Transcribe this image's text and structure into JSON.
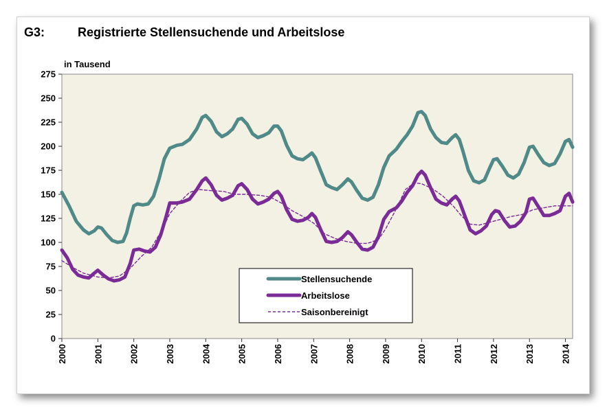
{
  "header": {
    "code": "G3:",
    "title": "Registrierte Stellensuchende und Arbeitslose",
    "unit": "in Tausend"
  },
  "chart_data": {
    "type": "line",
    "title": "Registrierte Stellensuchende und Arbeitslose",
    "ylabel": "in Tausend",
    "ylim": [
      0,
      275
    ],
    "yticks": [
      0,
      25,
      50,
      75,
      100,
      125,
      150,
      175,
      200,
      225,
      250,
      275
    ],
    "xlim": [
      2000,
      2014.2
    ],
    "xticks": [
      "2000",
      "2001",
      "2002",
      "2003",
      "2004",
      "2005",
      "2006",
      "2007",
      "2008",
      "2009",
      "2010",
      "2011",
      "2012",
      "2013",
      "2014"
    ],
    "grid": false,
    "legend_position": "lower-center",
    "background": "#f3f0e4",
    "series": [
      {
        "name": "Stellensuchende",
        "color": "#4f8a88",
        "style": "solid-thick",
        "points": [
          [
            2000.0,
            152
          ],
          [
            2000.2,
            138
          ],
          [
            2000.4,
            122
          ],
          [
            2000.6,
            113
          ],
          [
            2000.75,
            109
          ],
          [
            2000.9,
            112
          ],
          [
            2001.0,
            116
          ],
          [
            2001.1,
            115
          ],
          [
            2001.25,
            108
          ],
          [
            2001.4,
            102
          ],
          [
            2001.55,
            100
          ],
          [
            2001.7,
            101
          ],
          [
            2001.8,
            110
          ],
          [
            2001.9,
            125
          ],
          [
            2002.0,
            138
          ],
          [
            2002.1,
            140
          ],
          [
            2002.25,
            139
          ],
          [
            2002.4,
            140
          ],
          [
            2002.55,
            148
          ],
          [
            2002.7,
            166
          ],
          [
            2002.85,
            187
          ],
          [
            2003.0,
            198
          ],
          [
            2003.2,
            201
          ],
          [
            2003.35,
            202
          ],
          [
            2003.55,
            207
          ],
          [
            2003.75,
            218
          ],
          [
            2003.9,
            230
          ],
          [
            2004.0,
            232
          ],
          [
            2004.15,
            226
          ],
          [
            2004.3,
            215
          ],
          [
            2004.45,
            210
          ],
          [
            2004.6,
            213
          ],
          [
            2004.75,
            218
          ],
          [
            2004.9,
            228
          ],
          [
            2005.0,
            229
          ],
          [
            2005.15,
            223
          ],
          [
            2005.3,
            213
          ],
          [
            2005.45,
            209
          ],
          [
            2005.6,
            211
          ],
          [
            2005.75,
            214
          ],
          [
            2005.9,
            221
          ],
          [
            2006.0,
            221
          ],
          [
            2006.1,
            216
          ],
          [
            2006.25,
            201
          ],
          [
            2006.4,
            190
          ],
          [
            2006.55,
            187
          ],
          [
            2006.7,
            186
          ],
          [
            2006.85,
            190
          ],
          [
            2006.95,
            193
          ],
          [
            2007.05,
            188
          ],
          [
            2007.2,
            174
          ],
          [
            2007.35,
            160
          ],
          [
            2007.5,
            157
          ],
          [
            2007.65,
            155
          ],
          [
            2007.8,
            160
          ],
          [
            2007.95,
            166
          ],
          [
            2008.05,
            163
          ],
          [
            2008.2,
            154
          ],
          [
            2008.35,
            146
          ],
          [
            2008.5,
            144
          ],
          [
            2008.65,
            147
          ],
          [
            2008.8,
            160
          ],
          [
            2008.95,
            178
          ],
          [
            2009.1,
            190
          ],
          [
            2009.3,
            197
          ],
          [
            2009.45,
            205
          ],
          [
            2009.6,
            212
          ],
          [
            2009.75,
            221
          ],
          [
            2009.9,
            235
          ],
          [
            2010.0,
            236
          ],
          [
            2010.1,
            232
          ],
          [
            2010.25,
            218
          ],
          [
            2010.4,
            209
          ],
          [
            2010.55,
            204
          ],
          [
            2010.7,
            203
          ],
          [
            2010.85,
            209
          ],
          [
            2010.95,
            212
          ],
          [
            2011.05,
            207
          ],
          [
            2011.15,
            195
          ],
          [
            2011.3,
            175
          ],
          [
            2011.45,
            164
          ],
          [
            2011.6,
            162
          ],
          [
            2011.75,
            165
          ],
          [
            2011.9,
            178
          ],
          [
            2012.0,
            186
          ],
          [
            2012.1,
            187
          ],
          [
            2012.25,
            179
          ],
          [
            2012.4,
            170
          ],
          [
            2012.55,
            167
          ],
          [
            2012.7,
            171
          ],
          [
            2012.85,
            183
          ],
          [
            2013.0,
            199
          ],
          [
            2013.1,
            200
          ],
          [
            2013.25,
            191
          ],
          [
            2013.4,
            183
          ],
          [
            2013.55,
            180
          ],
          [
            2013.7,
            182
          ],
          [
            2013.85,
            192
          ],
          [
            2014.0,
            205
          ],
          [
            2014.1,
            207
          ],
          [
            2014.2,
            199
          ]
        ]
      },
      {
        "name": "Arbeitslose",
        "color": "#7b2b96",
        "style": "solid-thick",
        "points": [
          [
            2000.0,
            92
          ],
          [
            2000.15,
            84
          ],
          [
            2000.3,
            72
          ],
          [
            2000.45,
            66
          ],
          [
            2000.6,
            64
          ],
          [
            2000.75,
            63
          ],
          [
            2000.9,
            68
          ],
          [
            2001.0,
            71
          ],
          [
            2001.15,
            66
          ],
          [
            2001.3,
            62
          ],
          [
            2001.45,
            60
          ],
          [
            2001.6,
            61
          ],
          [
            2001.75,
            64
          ],
          [
            2001.9,
            78
          ],
          [
            2002.0,
            92
          ],
          [
            2002.15,
            93
          ],
          [
            2002.3,
            91
          ],
          [
            2002.45,
            90
          ],
          [
            2002.6,
            95
          ],
          [
            2002.75,
            108
          ],
          [
            2002.9,
            127
          ],
          [
            2003.0,
            141
          ],
          [
            2003.2,
            141
          ],
          [
            2003.35,
            142
          ],
          [
            2003.55,
            145
          ],
          [
            2003.75,
            155
          ],
          [
            2003.9,
            164
          ],
          [
            2004.0,
            167
          ],
          [
            2004.15,
            160
          ],
          [
            2004.3,
            149
          ],
          [
            2004.45,
            144
          ],
          [
            2004.6,
            146
          ],
          [
            2004.75,
            149
          ],
          [
            2004.9,
            159
          ],
          [
            2005.0,
            161
          ],
          [
            2005.15,
            155
          ],
          [
            2005.3,
            145
          ],
          [
            2005.45,
            140
          ],
          [
            2005.6,
            142
          ],
          [
            2005.75,
            145
          ],
          [
            2005.9,
            151
          ],
          [
            2006.0,
            153
          ],
          [
            2006.1,
            148
          ],
          [
            2006.25,
            134
          ],
          [
            2006.4,
            124
          ],
          [
            2006.55,
            122
          ],
          [
            2006.7,
            123
          ],
          [
            2006.85,
            126
          ],
          [
            2006.95,
            130
          ],
          [
            2007.05,
            126
          ],
          [
            2007.2,
            113
          ],
          [
            2007.35,
            101
          ],
          [
            2007.5,
            100
          ],
          [
            2007.65,
            101
          ],
          [
            2007.8,
            105
          ],
          [
            2007.95,
            111
          ],
          [
            2008.05,
            108
          ],
          [
            2008.2,
            100
          ],
          [
            2008.35,
            93
          ],
          [
            2008.5,
            92
          ],
          [
            2008.65,
            95
          ],
          [
            2008.8,
            106
          ],
          [
            2008.95,
            124
          ],
          [
            2009.1,
            132
          ],
          [
            2009.3,
            136
          ],
          [
            2009.45,
            143
          ],
          [
            2009.6,
            152
          ],
          [
            2009.75,
            159
          ],
          [
            2009.9,
            170
          ],
          [
            2010.0,
            174
          ],
          [
            2010.1,
            170
          ],
          [
            2010.25,
            157
          ],
          [
            2010.4,
            145
          ],
          [
            2010.55,
            141
          ],
          [
            2010.7,
            139
          ],
          [
            2010.85,
            145
          ],
          [
            2010.95,
            148
          ],
          [
            2011.05,
            143
          ],
          [
            2011.2,
            128
          ],
          [
            2011.35,
            113
          ],
          [
            2011.5,
            109
          ],
          [
            2011.65,
            112
          ],
          [
            2011.8,
            117
          ],
          [
            2011.95,
            129
          ],
          [
            2012.05,
            133
          ],
          [
            2012.15,
            132
          ],
          [
            2012.3,
            123
          ],
          [
            2012.45,
            116
          ],
          [
            2012.6,
            117
          ],
          [
            2012.75,
            122
          ],
          [
            2012.9,
            131
          ],
          [
            2013.0,
            145
          ],
          [
            2013.1,
            146
          ],
          [
            2013.25,
            137
          ],
          [
            2013.4,
            128
          ],
          [
            2013.55,
            128
          ],
          [
            2013.7,
            130
          ],
          [
            2013.85,
            133
          ],
          [
            2014.0,
            148
          ],
          [
            2014.1,
            151
          ],
          [
            2014.2,
            142
          ]
        ]
      },
      {
        "name": "Saisonbereinigt",
        "color": "#7b2b96",
        "style": "dashed-thin",
        "points": [
          [
            2000.0,
            81
          ],
          [
            2000.3,
            74
          ],
          [
            2000.6,
            68
          ],
          [
            2001.0,
            64
          ],
          [
            2001.3,
            63
          ],
          [
            2001.6,
            65
          ],
          [
            2001.9,
            73
          ],
          [
            2002.2,
            85
          ],
          [
            2002.5,
            95
          ],
          [
            2002.8,
            114
          ],
          [
            2003.0,
            130
          ],
          [
            2003.3,
            143
          ],
          [
            2003.55,
            152
          ],
          [
            2003.8,
            155
          ],
          [
            2004.1,
            154
          ],
          [
            2004.5,
            153
          ],
          [
            2004.8,
            150
          ],
          [
            2005.1,
            150
          ],
          [
            2005.5,
            149
          ],
          [
            2005.8,
            147
          ],
          [
            2006.1,
            141
          ],
          [
            2006.4,
            133
          ],
          [
            2006.7,
            127
          ],
          [
            2007.0,
            120
          ],
          [
            2007.3,
            109
          ],
          [
            2007.6,
            104
          ],
          [
            2007.9,
            101
          ],
          [
            2008.2,
            99
          ],
          [
            2008.5,
            99
          ],
          [
            2008.8,
            103
          ],
          [
            2009.0,
            114
          ],
          [
            2009.3,
            135
          ],
          [
            2009.55,
            155
          ],
          [
            2009.8,
            162
          ],
          [
            2010.0,
            161
          ],
          [
            2010.3,
            156
          ],
          [
            2010.6,
            148
          ],
          [
            2010.9,
            137
          ],
          [
            2011.1,
            128
          ],
          [
            2011.35,
            119
          ],
          [
            2011.6,
            118
          ],
          [
            2011.9,
            121
          ],
          [
            2012.2,
            124
          ],
          [
            2012.5,
            127
          ],
          [
            2012.8,
            129
          ],
          [
            2013.1,
            134
          ],
          [
            2013.4,
            136
          ],
          [
            2013.7,
            138
          ],
          [
            2014.0,
            138
          ],
          [
            2014.2,
            138
          ]
        ]
      }
    ]
  }
}
